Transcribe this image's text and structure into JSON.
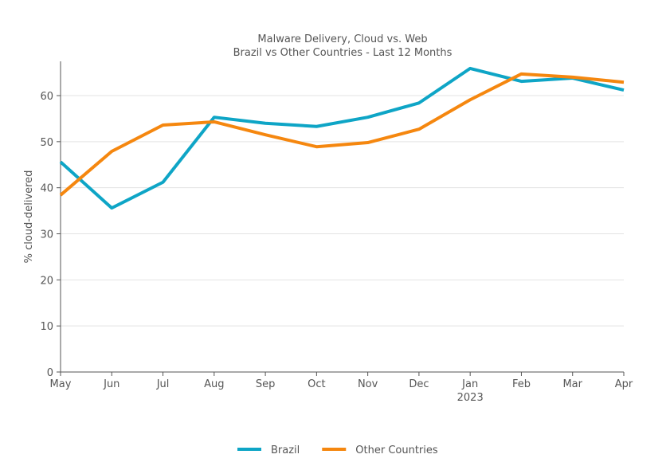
{
  "chart_data": {
    "type": "line",
    "title": "Malware Delivery, Cloud vs. Web",
    "subtitle": "Brazil vs Other Countries - Last 12 Months",
    "xlabel": "",
    "ylabel": "% cloud-delivered",
    "categories": [
      "May",
      "Jun",
      "Jul",
      "Aug",
      "Sep",
      "Oct",
      "Nov",
      "Dec",
      "Jan",
      "Feb",
      "Mar",
      "Apr"
    ],
    "year_annotation": {
      "category": "Jan",
      "text": "2023"
    },
    "ylim": [
      0,
      70
    ],
    "yticks": [
      0,
      10,
      20,
      30,
      40,
      50,
      60
    ],
    "grid": true,
    "legend_position": "bottom",
    "series": [
      {
        "name": "Brazil",
        "color": "#0ea5c6",
        "values": [
          45.6,
          35.6,
          41.2,
          55.3,
          54.0,
          53.3,
          55.3,
          58.4,
          65.9,
          63.1,
          63.8,
          61.2
        ]
      },
      {
        "name": "Other Countries",
        "color": "#f5870f",
        "values": [
          38.4,
          47.9,
          53.6,
          54.3,
          51.5,
          48.9,
          49.8,
          52.7,
          59.1,
          64.7,
          64.0,
          62.9
        ]
      }
    ]
  }
}
